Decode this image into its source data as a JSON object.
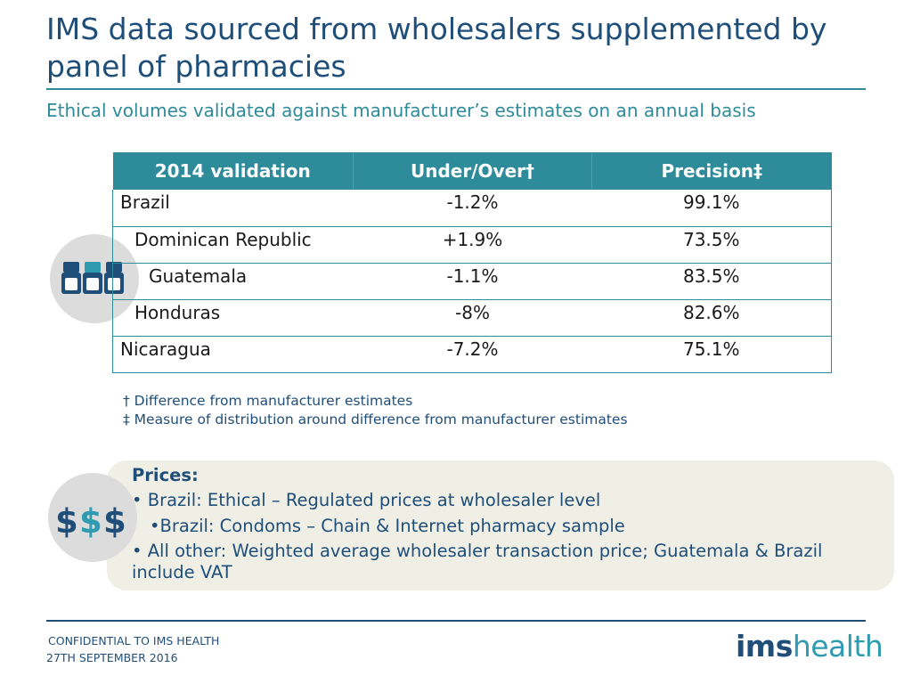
{
  "header": {
    "title": "IMS data sourced from wholesalers supplemented by panel of pharmacies",
    "subtitle": "Ethical volumes validated against manufacturer’s estimates on an annual basis"
  },
  "table": {
    "headers": [
      "2014 validation",
      "Under/Over†",
      "Precision‡"
    ],
    "rows": [
      {
        "country": "Brazil",
        "under_over": "-1.2%",
        "precision": "99.1%"
      },
      {
        "country": "Dominican Republic",
        "under_over": "+1.9%",
        "precision": "73.5%"
      },
      {
        "country": "Guatemala",
        "under_over": "-1.1%",
        "precision": "83.5%"
      },
      {
        "country": "Honduras",
        "under_over": "-8%",
        "precision": "82.6%"
      },
      {
        "country": "Nicaragua",
        "under_over": "-7.2%",
        "precision": "75.1%"
      }
    ]
  },
  "footnotes": [
    "† Difference from manufacturer estimates",
    "‡ Measure of distribution around difference from manufacturer estimates"
  ],
  "prices": {
    "title": "Prices:",
    "bullets": [
      "• Brazil: Ethical – Regulated prices at wholesaler level",
      "•Brazil: Condoms – Chain & Internet pharmacy sample",
      "• All other: Weighted average wholesaler transaction price; Guatemala & Brazil include VAT"
    ]
  },
  "icons": {
    "pills": "pill-bottles-icon",
    "dollars_text": "$$$"
  },
  "footer": {
    "confidential": "CONFIDENTIAL TO IMS HEALTH",
    "date": "27TH SEPTEMBER 2016",
    "logo_ims": "ims",
    "logo_health": "health"
  },
  "colors": {
    "teal": "#2e8b9a",
    "navy": "#1f4e79",
    "box_bg": "#f0efe6",
    "icon_gray": "#dcdcdc"
  }
}
